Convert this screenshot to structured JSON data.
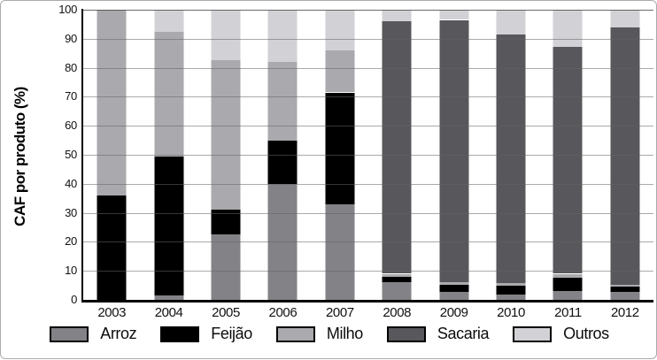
{
  "chart_data": {
    "type": "bar",
    "stacked": true,
    "title": "",
    "xlabel": "",
    "ylabel": "CAF por produto (%)",
    "ylim": [
      0,
      100
    ],
    "yticks": [
      0,
      10,
      20,
      30,
      40,
      50,
      60,
      70,
      80,
      90,
      100
    ],
    "grid": "horizontal",
    "legend_position": "bottom",
    "categories": [
      "2003",
      "2004",
      "2005",
      "2006",
      "2007",
      "2008",
      "2009",
      "2010",
      "2011",
      "2012"
    ],
    "series": [
      {
        "name": "Arroz",
        "color": "#838387",
        "values": [
          0,
          1.5,
          22.5,
          40,
          33,
          6,
          2.6,
          1.9,
          3.0,
          2.7
        ]
      },
      {
        "name": "Feijão",
        "color": "#000000",
        "values": [
          36,
          48,
          8.5,
          15,
          38.5,
          2,
          2.7,
          3.1,
          4.7,
          1.8
        ]
      },
      {
        "name": "Milho",
        "color": "#aaaaae",
        "values": [
          64,
          43,
          51.5,
          27,
          14.5,
          1,
          0.7,
          0.7,
          1.3,
          0.8
        ]
      },
      {
        "name": "Sacaria",
        "color": "#58585c",
        "values": [
          0,
          0,
          0,
          0,
          0,
          87,
          90.5,
          85.7,
          78.3,
          88.7
        ]
      },
      {
        "name": "Outros",
        "color": "#d2d2d6",
        "values": [
          0,
          7.5,
          17.5,
          18,
          14,
          4,
          3.5,
          8.6,
          12.7,
          6.0
        ]
      }
    ],
    "axis_color": "#000000"
  }
}
